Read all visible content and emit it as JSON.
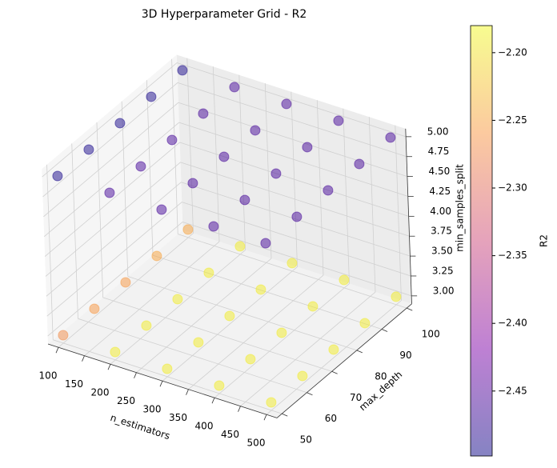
{
  "chart_data": {
    "type": "scatter3d",
    "title": "3D Hyperparameter Grid - R2",
    "xlabel": "n_estimators",
    "ylabel": "max_depth",
    "zlabel": "min_samples_split",
    "colorbar_label": "R2",
    "colormap": "plasma",
    "alpha": 0.5,
    "x": [
      100,
      100,
      100,
      100,
      100,
      200,
      200,
      200,
      200,
      200,
      300,
      300,
      300,
      300,
      300,
      400,
      400,
      400,
      400,
      400,
      500,
      500,
      500,
      500,
      500,
      100,
      100,
      100,
      100,
      100,
      200,
      200,
      200,
      200,
      200,
      300,
      300,
      300,
      300,
      300,
      400,
      400,
      400,
      400,
      400,
      500,
      500,
      500,
      500,
      500
    ],
    "y": [
      50,
      62.5,
      75,
      87.5,
      100,
      50,
      62.5,
      75,
      87.5,
      100,
      50,
      62.5,
      75,
      87.5,
      100,
      50,
      62.5,
      75,
      87.5,
      100,
      50,
      62.5,
      75,
      87.5,
      100,
      50,
      62.5,
      75,
      87.5,
      100,
      50,
      62.5,
      75,
      87.5,
      100,
      50,
      62.5,
      75,
      87.5,
      100,
      50,
      62.5,
      75,
      87.5,
      100,
      50,
      62.5,
      75,
      87.5,
      100
    ],
    "z": [
      3,
      3,
      3,
      3,
      3,
      3,
      3,
      3,
      3,
      3,
      3,
      3,
      3,
      3,
      3,
      3,
      3,
      3,
      3,
      3,
      3,
      3,
      3,
      3,
      3,
      5,
      5,
      5,
      5,
      5,
      5,
      5,
      5,
      5,
      5,
      5,
      5,
      5,
      5,
      5,
      5,
      5,
      5,
      5,
      5,
      5,
      5,
      5,
      5,
      5
    ],
    "values": [
      -2.27,
      -2.26,
      -2.26,
      -2.25,
      -2.25,
      -2.19,
      -2.19,
      -2.19,
      -2.19,
      -2.19,
      -2.19,
      -2.19,
      -2.19,
      -2.19,
      -2.19,
      -2.19,
      -2.19,
      -2.19,
      -2.19,
      -2.19,
      -2.19,
      -2.19,
      -2.19,
      -2.19,
      -2.19,
      -2.49,
      -2.49,
      -2.49,
      -2.49,
      -2.49,
      -2.46,
      -2.46,
      -2.46,
      -2.46,
      -2.46,
      -2.46,
      -2.46,
      -2.46,
      -2.46,
      -2.46,
      -2.46,
      -2.46,
      -2.46,
      -2.46,
      -2.46,
      -2.46,
      -2.46,
      -2.46,
      -2.46,
      -2.46
    ],
    "xlim": [
      80,
      520
    ],
    "ylim": [
      48,
      102
    ],
    "zlim": [
      2.9,
      5.1
    ],
    "xticks": [
      100,
      150,
      200,
      250,
      300,
      350,
      400,
      450,
      500
    ],
    "yticks": [
      50,
      60,
      70,
      80,
      90,
      100
    ],
    "zticks": [
      {
        "value": 3,
        "label": "3.00"
      },
      {
        "value": 3.25,
        "label": "3.25"
      },
      {
        "value": 3.5,
        "label": "3.50"
      },
      {
        "value": 3.75,
        "label": "3.75"
      },
      {
        "value": 4,
        "label": "4.00"
      },
      {
        "value": 4.25,
        "label": "4.25"
      },
      {
        "value": 4.5,
        "label": "4.50"
      },
      {
        "value": 4.75,
        "label": "4.75"
      },
      {
        "value": 5,
        "label": "5.00"
      }
    ],
    "clim": [
      -2.498,
      -2.18
    ],
    "cticks": [
      {
        "value": -2.45,
        "label": "−2.45"
      },
      {
        "value": -2.4,
        "label": "−2.40"
      },
      {
        "value": -2.35,
        "label": "−2.35"
      },
      {
        "value": -2.3,
        "label": "−2.30"
      },
      {
        "value": -2.25,
        "label": "−2.25"
      },
      {
        "value": -2.2,
        "label": "−2.20"
      }
    ]
  }
}
